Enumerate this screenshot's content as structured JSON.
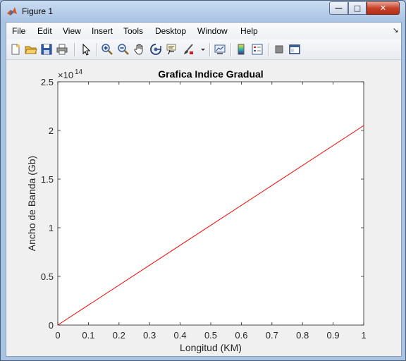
{
  "window": {
    "title": "Figure 1",
    "controls": {
      "minimize": "—",
      "maximize": "□",
      "close": "✕"
    }
  },
  "menubar": {
    "items": [
      "File",
      "Edit",
      "View",
      "Insert",
      "Tools",
      "Desktop",
      "Window",
      "Help"
    ],
    "dock_glyph": "↘"
  },
  "toolbar": {
    "buttons": [
      "new-figure",
      "open-file",
      "save",
      "print",
      "edit-plot",
      "zoom-in",
      "zoom-out",
      "pan",
      "rotate-3d",
      "data-cursor",
      "brush",
      "link-plot",
      "insert-colorbar",
      "insert-legend",
      "hide-plot-tools",
      "show-plot-tools"
    ]
  },
  "chart_data": {
    "type": "line",
    "title": "Grafica Indice Gradual",
    "xlabel": "Longitud (KM)",
    "ylabel": "Ancho de Banda (Gb)",
    "xlim": [
      0,
      1
    ],
    "ylim": [
      0,
      2.5
    ],
    "y_exponent_label": "×10",
    "y_exponent": "14",
    "xticks": [
      "0",
      "0.1",
      "0.2",
      "0.3",
      "0.4",
      "0.5",
      "0.6",
      "0.7",
      "0.8",
      "0.9",
      "1"
    ],
    "yticks": [
      "0",
      "0.5",
      "1",
      "1.5",
      "2",
      "2.5"
    ],
    "grid": false,
    "series": [
      {
        "color": "#ff0000",
        "x": [
          0,
          1
        ],
        "y": [
          0,
          2.05
        ]
      }
    ]
  }
}
